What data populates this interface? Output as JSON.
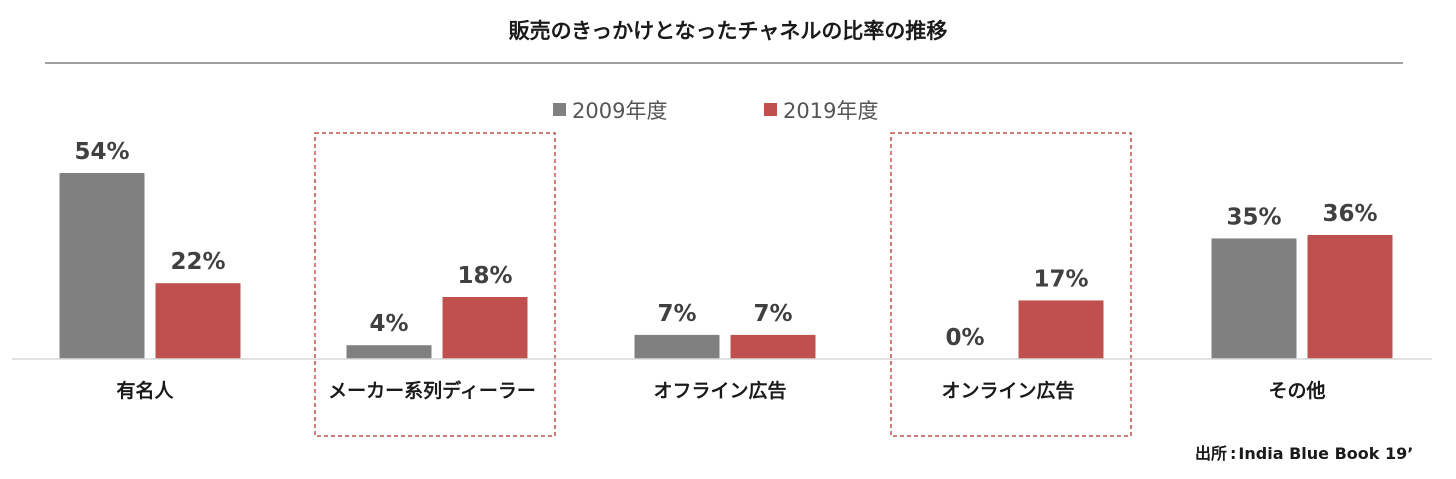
{
  "chart_data": {
    "type": "bar",
    "title": "販売のきっかけとなったチャネルの比率の推移",
    "categories": [
      "有名人",
      "メーカー系列ディーラー",
      "オフライン広告",
      "オンライン広告",
      "その他"
    ],
    "series": [
      {
        "name": "2009年度",
        "values": [
          54,
          4,
          7,
          0,
          35
        ],
        "labels": [
          "54%",
          "4%",
          "7%",
          "0%",
          "35%"
        ],
        "color": "#808080"
      },
      {
        "name": "2019年度",
        "values": [
          22,
          18,
          7,
          17,
          36
        ],
        "labels": [
          "22%",
          "18%",
          "7%",
          "17%",
          "36%"
        ],
        "color": "#c0504d"
      }
    ],
    "highlighted_categories": [
      1,
      3
    ],
    "highlight_color": "#c0504d",
    "ylim": [
      0,
      54
    ],
    "xlabel": "",
    "ylabel": "",
    "grid": false,
    "legend_position": "top-center"
  },
  "source": {
    "label": "出所",
    "separator": ":",
    "text": "India Blue Book 19’"
  }
}
